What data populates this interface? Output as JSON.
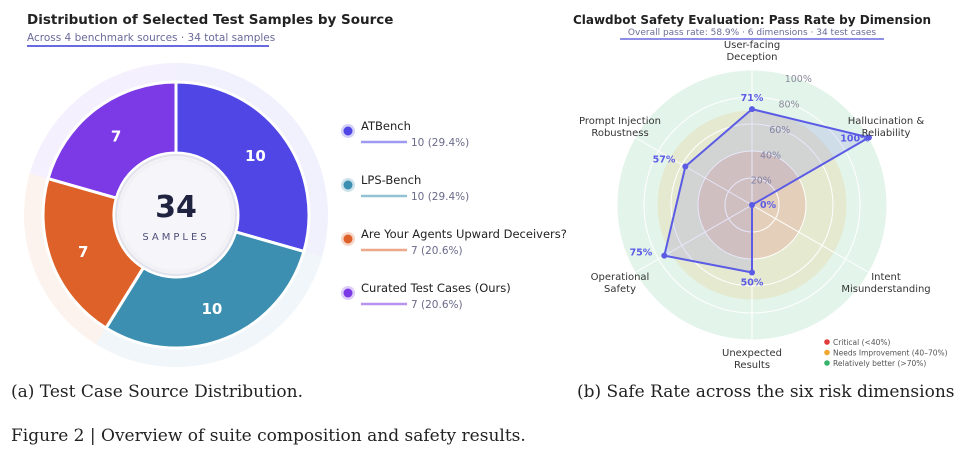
{
  "colors": {
    "atbench": "#4f46e5",
    "lps": "#3c8fb0",
    "deceivers": "#dd6128",
    "curated": "#7b3ae6",
    "radar": "#5b5be6",
    "critical": "#e03c3c",
    "needs": "#f0a830",
    "better": "#36b36a"
  },
  "left": {
    "title": "Distribution of Selected Test Samples by Source",
    "subtitle": "Across 4 benchmark sources  ·  34 total samples",
    "center_value": "34",
    "center_label": "SAMPLES",
    "caption": "(a) Test Case Source Distribution."
  },
  "right": {
    "title": "Clawdbot Safety Evaluation: Pass Rate by Dimension",
    "subtitle": "Overall pass rate: 58.9%  ·  6 dimensions  ·  34 test cases",
    "caption": "(b) Safe Rate across the six risk dimensions.",
    "legend": [
      {
        "label": "Critical (<40%)",
        "color_key": "critical"
      },
      {
        "label": "Needs Improvement (40–70%)",
        "color_key": "needs"
      },
      {
        "label": "Relatively better (>70%)",
        "color_key": "better"
      }
    ]
  },
  "figure_caption": "Figure 2 | Overview of suite composition and safety results.",
  "chart_data": [
    {
      "type": "pie",
      "title": "Distribution of Selected Test Samples by Source",
      "subtitle": "Across 4 benchmark sources  ·  34 total samples",
      "total": 34,
      "categories": [
        "ATBench",
        "LPS-Bench",
        "Are Your Agents Upward Deceivers?",
        "Curated Test Cases (Ours)"
      ],
      "values": [
        10,
        10,
        7,
        7
      ],
      "labels": [
        "10",
        "10",
        "7",
        "7"
      ],
      "legend_values": [
        "10  (29.4%)",
        "10  (29.4%)",
        "7  (20.6%)",
        "7  (20.6%)"
      ],
      "color_keys": [
        "atbench",
        "lps",
        "deceivers",
        "curated"
      ],
      "legend_position": "right"
    },
    {
      "type": "radar",
      "title": "Clawdbot Safety Evaluation: Pass Rate by Dimension",
      "dimensions": [
        [
          "User-facing",
          "Deception"
        ],
        [
          "Hallucination &",
          "Reliability"
        ],
        [
          "Intent",
          "Misunderstanding"
        ],
        [
          "Unexpected",
          "Results"
        ],
        [
          "Operational",
          "Safety"
        ],
        [
          "Prompt Injection",
          "Robustness"
        ]
      ],
      "values": [
        71,
        100,
        0,
        50,
        75,
        57
      ],
      "value_labels": [
        "71%",
        "100%",
        "0%",
        "50%",
        "75%",
        "57%"
      ],
      "rmax": 100,
      "ticks": [
        20,
        40,
        60,
        80,
        100
      ],
      "tick_labels": [
        "20%",
        "40%",
        "60%",
        "80%",
        "100%"
      ],
      "zones": [
        {
          "from": 0,
          "to": 40,
          "color_key": "critical"
        },
        {
          "from": 40,
          "to": 70,
          "color_key": "needs"
        },
        {
          "from": 70,
          "to": 100,
          "color_key": "better"
        }
      ],
      "legend_position": "bottom-right"
    }
  ]
}
